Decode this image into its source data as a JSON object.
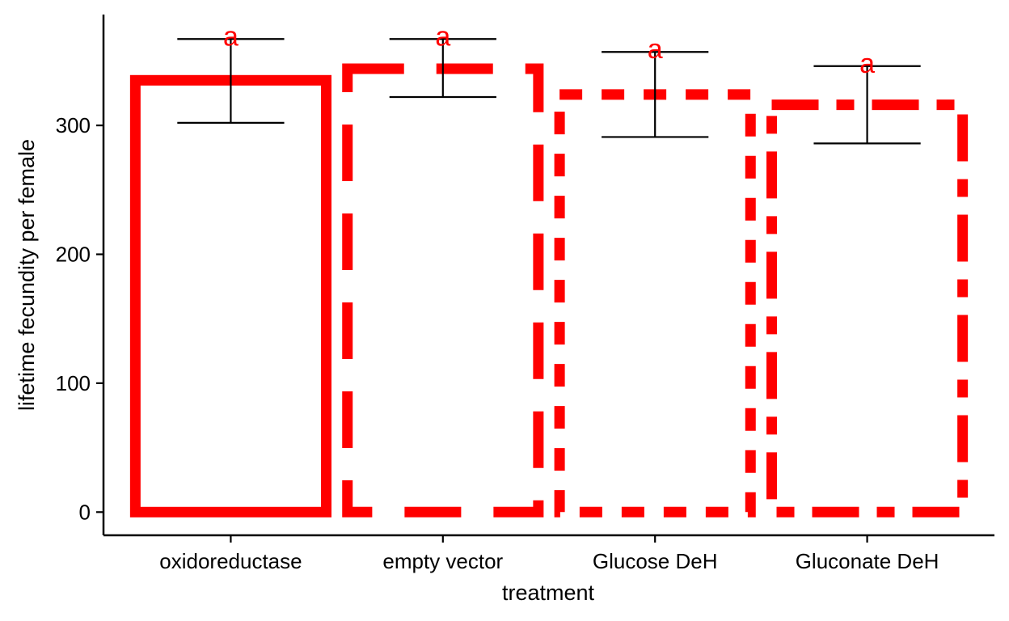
{
  "chart_data": {
    "type": "bar",
    "xlabel": "treatment",
    "ylabel": "lifetime fecundity per female",
    "categories": [
      "oxidoreductase",
      "empty vector",
      "Glucose DeH",
      "Gluconate DeH"
    ],
    "values": [
      335,
      344,
      324,
      316
    ],
    "error_low": [
      302,
      322,
      291,
      286
    ],
    "error_high": [
      367,
      367,
      357,
      346
    ],
    "significance_labels": [
      "a",
      "a",
      "a",
      "a"
    ],
    "bar_styles": [
      "solid",
      "longdash",
      "dashed",
      "twodash"
    ],
    "yticks": [
      0,
      100,
      200,
      300
    ],
    "ylim": [
      -18,
      386
    ],
    "grid": false,
    "bar_outline_color": "#ff0000",
    "bar_fill_color": "#ffffff",
    "error_bar_color": "#000000",
    "label_color": "#ff0000"
  }
}
